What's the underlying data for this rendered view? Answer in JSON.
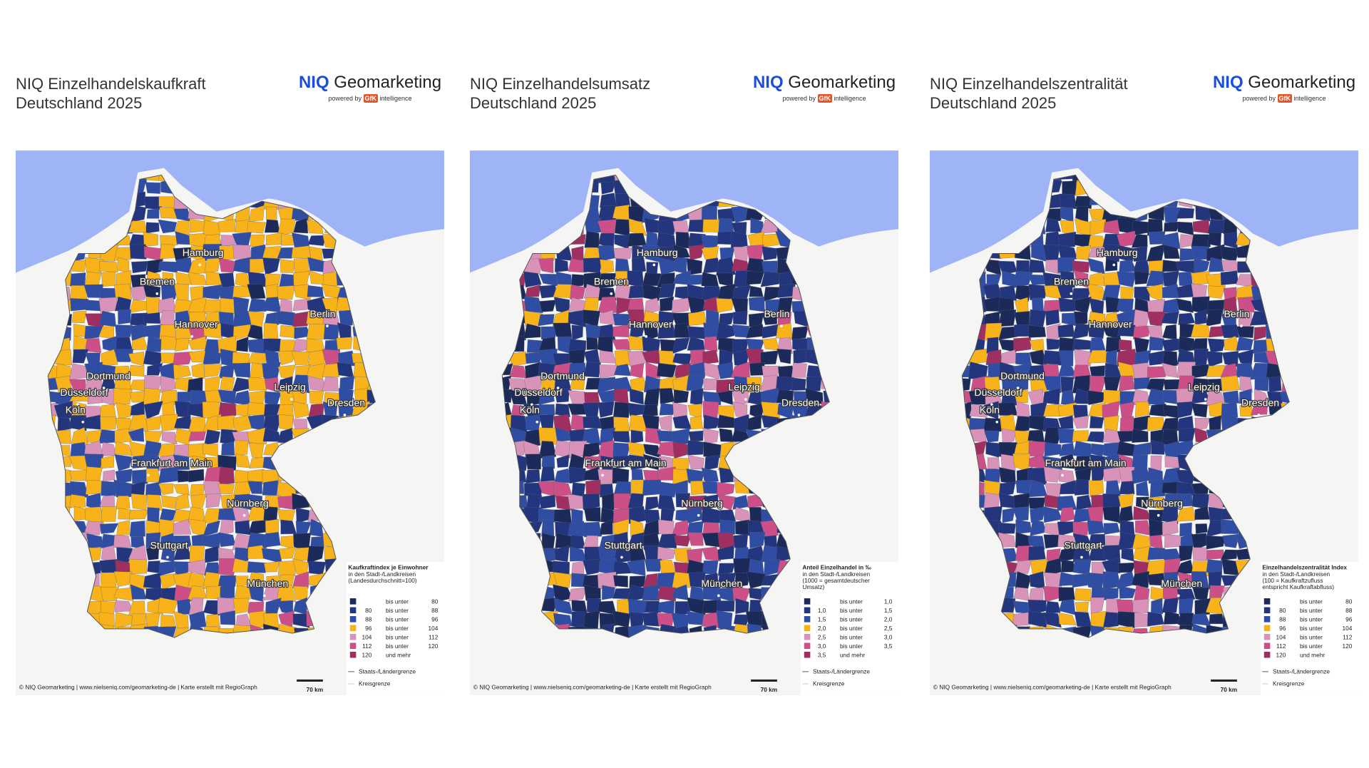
{
  "cities": [
    "Hamburg",
    "Bremen",
    "Hannover",
    "Berlin",
    "Dortmund",
    "Düsseldorf",
    "Köln",
    "Leipzig",
    "Dresden",
    "Frankfurt am Main",
    "Nürnberg",
    "Stuttgart",
    "München"
  ],
  "logo": {
    "brand": "NIQ",
    "product": "Geomarketing",
    "powered": "powered by",
    "gfk": "GfK",
    "suffix": "intelligence"
  },
  "boundaries": {
    "state": "Staats-/Ländergrenze",
    "district": "Kreisgrenze"
  },
  "credit": "© NIQ Geomarketing | www.nielseniq.com/geomarketing-de | Karte erstellt mit RegioGraph",
  "scale_label": "70 km",
  "panels": [
    {
      "title": [
        "NIQ Einzelhandelskaufkraft",
        "Deutschland 2025"
      ],
      "legend": {
        "lines": [
          "Kaufkraftindex je Einwohner",
          "in den Stadt-/Landkreisen",
          "(Landesdurchschnitt=100)"
        ],
        "rows": [
          {
            "color": "#1c2a5a",
            "relation": "bis unter",
            "to": "80"
          },
          {
            "color": "#22357d",
            "from": "80",
            "relation": "bis unter",
            "to": "88"
          },
          {
            "color": "#2f4ea3",
            "from": "88",
            "relation": "bis unter",
            "to": "96"
          },
          {
            "color": "#f8b21a",
            "from": "96",
            "relation": "bis unter",
            "to": "104"
          },
          {
            "color": "#d993b8",
            "from": "104",
            "relation": "bis unter",
            "to": "112"
          },
          {
            "color": "#cc4f88",
            "from": "112",
            "relation": "bis unter",
            "to": "120"
          },
          {
            "color": "#9e2f60",
            "from": "120",
            "relation": "und mehr"
          }
        ]
      }
    },
    {
      "title": [
        "NIQ Einzelhandelsumsatz",
        "Deutschland 2025"
      ],
      "legend": {
        "lines": [
          "Anteil Einzelhandel in ‰",
          "in den Stadt-/Landkreisen",
          "(1000 = gesamtdeutscher",
          "Umsatz)"
        ],
        "rows": [
          {
            "color": "#1c2a5a",
            "relation": "bis unter",
            "to": "1,0"
          },
          {
            "color": "#22357d",
            "from": "1,0",
            "relation": "bis unter",
            "to": "1,5"
          },
          {
            "color": "#2f4ea3",
            "from": "1,5",
            "relation": "bis unter",
            "to": "2,0"
          },
          {
            "color": "#f8b21a",
            "from": "2,0",
            "relation": "bis unter",
            "to": "2,5"
          },
          {
            "color": "#d993b8",
            "from": "2,5",
            "relation": "bis unter",
            "to": "3,0"
          },
          {
            "color": "#cc4f88",
            "from": "3,0",
            "relation": "bis unter",
            "to": "3,5"
          },
          {
            "color": "#9e2f60",
            "from": "3,5",
            "relation": "und mehr"
          }
        ]
      }
    },
    {
      "title": [
        "NIQ Einzelhandelszentralität",
        "Deutschland 2025"
      ],
      "legend": {
        "lines": [
          "Einzelhandelszentralität Index",
          "in den Stadt-/Landkreisen",
          "(100 = Kaufkraftzufluss",
          "entspricht Kaufkraftabfluss)"
        ],
        "rows": [
          {
            "color": "#1c2a5a",
            "relation": "bis unter",
            "to": "80"
          },
          {
            "color": "#22357d",
            "from": "80",
            "relation": "bis unter",
            "to": "88"
          },
          {
            "color": "#2f4ea3",
            "from": "88",
            "relation": "bis unter",
            "to": "96"
          },
          {
            "color": "#f8b21a",
            "from": "96",
            "relation": "bis unter",
            "to": "104"
          },
          {
            "color": "#d993b8",
            "from": "104",
            "relation": "bis unter",
            "to": "112"
          },
          {
            "color": "#cc4f88",
            "from": "112",
            "relation": "bis unter",
            "to": "120"
          },
          {
            "color": "#9e2f60",
            "from": "120",
            "relation": "und mehr"
          }
        ]
      }
    }
  ]
}
